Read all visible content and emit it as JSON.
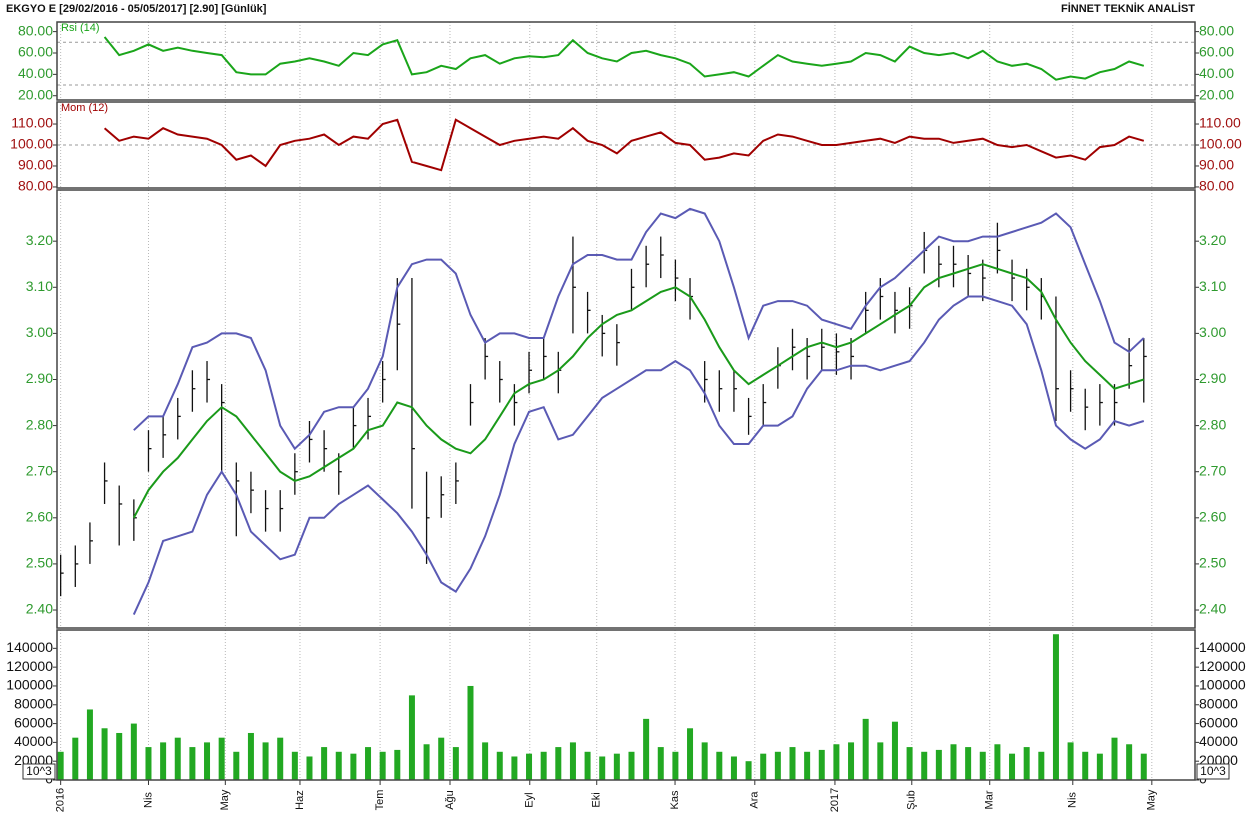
{
  "header": {
    "title": "EKGYO E  [29/02/2016 - 05/05/2017]  [2.90]  [Günlük]",
    "brand": "FİNNET TEKNİK ANALİST"
  },
  "chart_data": [
    {
      "type": "line",
      "x": [
        0,
        4,
        8,
        12,
        16,
        20,
        24,
        28,
        32,
        36,
        40,
        44,
        48,
        52,
        56,
        60,
        64,
        68,
        72,
        76,
        80,
        84,
        88,
        92,
        96,
        100,
        104,
        108,
        112,
        116,
        120,
        124,
        128,
        132,
        136,
        140,
        144,
        148,
        152,
        156,
        160,
        164,
        168,
        172,
        176,
        180,
        184,
        188,
        192,
        196,
        200,
        204,
        208,
        212,
        216,
        220,
        224,
        228,
        232,
        236,
        240,
        244,
        248,
        252,
        256,
        260,
        264,
        268,
        272,
        276,
        280,
        284,
        288,
        292,
        296
      ],
      "xlim": [
        -1,
        310
      ],
      "ylim": [
        16,
        89
      ],
      "yticks": [
        {
          "value": 20,
          "label": "20.00"
        },
        {
          "value": 40,
          "label": "40.00"
        },
        {
          "value": 60,
          "label": "60.00"
        },
        {
          "value": 80,
          "label": "80.00"
        }
      ],
      "levels": [
        30,
        70
      ],
      "tick_color": "#2e9a2e",
      "series": [
        {
          "name": "Rsi (14)",
          "color": "#1aa51a",
          "values": [
            null,
            null,
            null,
            75,
            58,
            62,
            68,
            62,
            65,
            62,
            60,
            58,
            42,
            40,
            40,
            50,
            52,
            55,
            52,
            48,
            60,
            58,
            68,
            72,
            40,
            42,
            48,
            45,
            55,
            58,
            50,
            55,
            57,
            56,
            58,
            72,
            60,
            55,
            52,
            60,
            62,
            58,
            55,
            50,
            38,
            40,
            42,
            38,
            48,
            58,
            52,
            50,
            48,
            50,
            52,
            60,
            58,
            52,
            66,
            60,
            58,
            60,
            55,
            62,
            52,
            48,
            50,
            45,
            35,
            38,
            36,
            42,
            45,
            52,
            48
          ]
        }
      ]
    },
    {
      "type": "line",
      "x": [
        0,
        4,
        8,
        12,
        16,
        20,
        24,
        28,
        32,
        36,
        40,
        44,
        48,
        52,
        56,
        60,
        64,
        68,
        72,
        76,
        80,
        84,
        88,
        92,
        96,
        100,
        104,
        108,
        112,
        116,
        120,
        124,
        128,
        132,
        136,
        140,
        144,
        148,
        152,
        156,
        160,
        164,
        168,
        172,
        176,
        180,
        184,
        188,
        192,
        196,
        200,
        204,
        208,
        212,
        216,
        220,
        224,
        228,
        232,
        236,
        240,
        244,
        248,
        252,
        256,
        260,
        264,
        268,
        272,
        276,
        280,
        284,
        288,
        292,
        296
      ],
      "xlim": [
        -1,
        310
      ],
      "ylim": [
        79.5,
        120.5
      ],
      "yticks": [
        {
          "value": 80,
          "label": "80.00"
        },
        {
          "value": 90,
          "label": "90.00"
        },
        {
          "value": 100,
          "label": "100.00"
        },
        {
          "value": 110,
          "label": "110.00"
        }
      ],
      "levels": [
        100
      ],
      "tick_color": "#a01010",
      "series": [
        {
          "name": "Mom (12)",
          "color": "#a00000",
          "values": [
            null,
            null,
            null,
            108,
            102,
            104,
            103,
            108,
            105,
            104,
            103,
            100,
            93,
            95,
            90,
            100,
            102,
            103,
            105,
            100,
            104,
            103,
            110,
            112,
            92,
            90,
            88,
            112,
            108,
            104,
            100,
            102,
            103,
            104,
            103,
            108,
            102,
            100,
            96,
            102,
            104,
            106,
            101,
            100,
            93,
            94,
            96,
            95,
            102,
            105,
            104,
            102,
            100,
            100,
            101,
            102,
            103,
            101,
            104,
            103,
            103,
            101,
            102,
            103,
            100,
            99,
            100,
            97,
            94,
            95,
            93,
            99,
            100,
            104,
            102
          ]
        }
      ]
    },
    {
      "type": "ohlc",
      "x": [
        0,
        4,
        8,
        12,
        16,
        20,
        24,
        28,
        32,
        36,
        40,
        44,
        48,
        52,
        56,
        60,
        64,
        68,
        72,
        76,
        80,
        84,
        88,
        92,
        96,
        100,
        104,
        108,
        112,
        116,
        120,
        124,
        128,
        132,
        136,
        140,
        144,
        148,
        152,
        156,
        160,
        164,
        168,
        172,
        176,
        180,
        184,
        188,
        192,
        196,
        200,
        204,
        208,
        212,
        216,
        220,
        224,
        228,
        232,
        236,
        240,
        244,
        248,
        252,
        256,
        260,
        264,
        268,
        272,
        276,
        280,
        284,
        288,
        292,
        296
      ],
      "xlim": [
        -1,
        310
      ],
      "ylim": [
        2.361,
        3.311
      ],
      "yticks": [
        {
          "value": 2.4,
          "label": "2.40"
        },
        {
          "value": 2.5,
          "label": "2.50"
        },
        {
          "value": 2.6,
          "label": "2.60"
        },
        {
          "value": 2.7,
          "label": "2.70"
        },
        {
          "value": 2.8,
          "label": "2.80"
        },
        {
          "value": 2.9,
          "label": "2.90"
        },
        {
          "value": 3.0,
          "label": "3.00"
        },
        {
          "value": 3.1,
          "label": "3.10"
        },
        {
          "value": 3.2,
          "label": "3.20"
        }
      ],
      "tick_color": "#2e9a2e",
      "color": "#111111",
      "high": [
        2.52,
        2.54,
        2.59,
        2.72,
        2.67,
        2.64,
        2.79,
        2.82,
        2.86,
        2.92,
        2.94,
        2.89,
        2.72,
        2.7,
        2.66,
        2.66,
        2.74,
        2.81,
        2.79,
        2.74,
        2.84,
        2.86,
        2.94,
        3.12,
        3.12,
        2.7,
        2.69,
        2.72,
        2.89,
        2.99,
        2.94,
        2.89,
        2.96,
        2.99,
        2.96,
        3.21,
        3.09,
        3.04,
        3.02,
        3.14,
        3.19,
        3.21,
        3.16,
        3.12,
        2.94,
        2.92,
        2.92,
        2.86,
        2.89,
        2.97,
        3.01,
        2.99,
        3.01,
        3.0,
        2.99,
        3.09,
        3.12,
        3.09,
        3.1,
        3.22,
        3.19,
        3.19,
        3.17,
        3.16,
        3.24,
        3.16,
        3.14,
        3.12,
        3.08,
        2.92,
        2.88,
        2.89,
        2.89,
        2.99,
        2.99
      ],
      "low": [
        2.43,
        2.45,
        2.5,
        2.63,
        2.54,
        2.55,
        2.7,
        2.73,
        2.77,
        2.83,
        2.85,
        2.7,
        2.56,
        2.61,
        2.57,
        2.57,
        2.65,
        2.72,
        2.7,
        2.65,
        2.75,
        2.77,
        2.85,
        2.92,
        2.62,
        2.5,
        2.6,
        2.63,
        2.8,
        2.9,
        2.85,
        2.8,
        2.87,
        2.9,
        2.87,
        3.0,
        3.0,
        2.95,
        2.93,
        3.05,
        3.1,
        3.12,
        3.07,
        3.03,
        2.85,
        2.83,
        2.83,
        2.78,
        2.8,
        2.88,
        2.92,
        2.9,
        2.92,
        2.91,
        2.9,
        3.0,
        3.03,
        3.0,
        3.01,
        3.13,
        3.1,
        3.1,
        3.08,
        3.07,
        3.13,
        3.07,
        3.05,
        3.03,
        2.81,
        2.83,
        2.79,
        2.8,
        2.8,
        2.88,
        2.85
      ],
      "close": [
        2.48,
        2.5,
        2.55,
        2.68,
        2.63,
        2.6,
        2.75,
        2.78,
        2.82,
        2.88,
        2.9,
        2.85,
        2.68,
        2.66,
        2.62,
        2.62,
        2.7,
        2.77,
        2.75,
        2.7,
        2.8,
        2.82,
        2.9,
        3.02,
        2.75,
        2.6,
        2.65,
        2.68,
        2.85,
        2.95,
        2.9,
        2.85,
        2.92,
        2.95,
        2.92,
        3.1,
        3.05,
        3.0,
        2.98,
        3.1,
        3.15,
        3.17,
        3.12,
        3.08,
        2.9,
        2.88,
        2.88,
        2.82,
        2.85,
        2.93,
        2.97,
        2.95,
        2.97,
        2.96,
        2.95,
        3.05,
        3.08,
        3.05,
        3.06,
        3.18,
        3.15,
        3.15,
        3.13,
        3.12,
        3.18,
        3.12,
        3.1,
        3.08,
        2.88,
        2.88,
        2.84,
        2.85,
        2.85,
        2.93,
        2.95
      ],
      "series": [
        {
          "color": "#5a5ab4",
          "values": [
            null,
            null,
            null,
            null,
            null,
            2.79,
            2.82,
            2.82,
            2.89,
            2.97,
            2.98,
            3.0,
            3.0,
            2.99,
            2.92,
            2.8,
            2.75,
            2.78,
            2.83,
            2.84,
            2.84,
            2.88,
            2.95,
            3.1,
            3.15,
            3.16,
            3.16,
            3.13,
            3.04,
            2.98,
            3.0,
            3.0,
            2.99,
            2.99,
            3.08,
            3.15,
            3.17,
            3.17,
            3.16,
            3.16,
            3.22,
            3.26,
            3.25,
            3.27,
            3.26,
            3.2,
            3.1,
            2.99,
            3.06,
            3.07,
            3.07,
            3.06,
            3.03,
            3.02,
            3.01,
            3.06,
            3.1,
            3.12,
            3.15,
            3.18,
            3.21,
            3.2,
            3.2,
            3.21,
            3.21,
            3.22,
            3.23,
            3.24,
            3.26,
            3.23,
            3.15,
            3.07,
            2.98,
            2.96,
            2.99
          ]
        },
        {
          "color": "#1a9a1a",
          "values": [
            null,
            null,
            null,
            null,
            null,
            2.6,
            2.66,
            2.7,
            2.73,
            2.77,
            2.81,
            2.84,
            2.82,
            2.78,
            2.74,
            2.7,
            2.68,
            2.69,
            2.71,
            2.73,
            2.75,
            2.79,
            2.8,
            2.85,
            2.84,
            2.8,
            2.77,
            2.75,
            2.74,
            2.77,
            2.82,
            2.87,
            2.89,
            2.9,
            2.92,
            2.95,
            2.99,
            3.02,
            3.04,
            3.05,
            3.07,
            3.09,
            3.1,
            3.08,
            3.03,
            2.97,
            2.92,
            2.89,
            2.91,
            2.93,
            2.95,
            2.97,
            2.98,
            2.97,
            2.98,
            3.0,
            3.02,
            3.04,
            3.06,
            3.1,
            3.12,
            3.13,
            3.14,
            3.15,
            3.14,
            3.13,
            3.12,
            3.09,
            3.03,
            2.98,
            2.94,
            2.91,
            2.88,
            2.89,
            2.9
          ]
        },
        {
          "color": "#5a5ab4",
          "values": [
            null,
            null,
            null,
            null,
            null,
            2.39,
            2.46,
            2.55,
            2.56,
            2.57,
            2.65,
            2.7,
            2.65,
            2.57,
            2.54,
            2.51,
            2.52,
            2.6,
            2.6,
            2.63,
            2.65,
            2.67,
            2.64,
            2.61,
            2.57,
            2.52,
            2.46,
            2.44,
            2.49,
            2.56,
            2.65,
            2.76,
            2.83,
            2.84,
            2.77,
            2.78,
            2.82,
            2.86,
            2.88,
            2.9,
            2.92,
            2.92,
            2.94,
            2.92,
            2.87,
            2.8,
            2.76,
            2.76,
            2.8,
            2.8,
            2.82,
            2.88,
            2.92,
            2.92,
            2.93,
            2.93,
            2.92,
            2.93,
            2.94,
            2.98,
            3.03,
            3.06,
            3.08,
            3.08,
            3.07,
            3.06,
            3.02,
            2.92,
            2.8,
            2.77,
            2.75,
            2.77,
            2.81,
            2.8,
            2.81
          ]
        }
      ]
    },
    {
      "type": "bar",
      "x": [
        0,
        4,
        8,
        12,
        16,
        20,
        24,
        28,
        32,
        36,
        40,
        44,
        48,
        52,
        56,
        60,
        64,
        68,
        72,
        76,
        80,
        84,
        88,
        92,
        96,
        100,
        104,
        108,
        112,
        116,
        120,
        124,
        128,
        132,
        136,
        140,
        144,
        148,
        152,
        156,
        160,
        164,
        168,
        172,
        176,
        180,
        184,
        188,
        192,
        196,
        200,
        204,
        208,
        212,
        216,
        220,
        224,
        228,
        232,
        236,
        240,
        244,
        248,
        252,
        256,
        260,
        264,
        268,
        272,
        276,
        280,
        284,
        288,
        292,
        296
      ],
      "xlim": [
        -1,
        310
      ],
      "ylim": [
        0,
        159500
      ],
      "yticks": [
        0,
        20000,
        40000,
        60000,
        80000,
        100000,
        120000,
        140000
      ],
      "tick_color": "#111111",
      "color": "#22a822",
      "unit_label": "10^3",
      "values": [
        30000,
        45000,
        75000,
        55000,
        50000,
        60000,
        35000,
        40000,
        45000,
        35000,
        40000,
        45000,
        30000,
        50000,
        40000,
        45000,
        30000,
        25000,
        35000,
        30000,
        28000,
        35000,
        30000,
        32000,
        90000,
        38000,
        45000,
        35000,
        100000,
        40000,
        30000,
        25000,
        28000,
        30000,
        35000,
        40000,
        30000,
        25000,
        28000,
        30000,
        65000,
        35000,
        30000,
        55000,
        40000,
        30000,
        25000,
        20000,
        28000,
        30000,
        35000,
        30000,
        32000,
        38000,
        40000,
        65000,
        40000,
        62000,
        35000,
        30000,
        32000,
        38000,
        35000,
        30000,
        38000,
        28000,
        35000,
        30000,
        155000,
        40000,
        30000,
        28000,
        45000,
        38000,
        28000
      ],
      "xticks": [
        {
          "value": 0,
          "label": "2016"
        },
        {
          "value": 24,
          "label": "Nis"
        },
        {
          "value": 45,
          "label": "May"
        },
        {
          "value": 65.4,
          "label": "Haz"
        },
        {
          "value": 87.3,
          "label": "Tem"
        },
        {
          "value": 106.4,
          "label": "Ağu"
        },
        {
          "value": 128.2,
          "label": "Eyl"
        },
        {
          "value": 146.5,
          "label": "Eki"
        },
        {
          "value": 167.9,
          "label": "Kas"
        },
        {
          "value": 189.7,
          "label": "Ara"
        },
        {
          "value": 211.6,
          "label": "2017"
        },
        {
          "value": 232.6,
          "label": "Şub"
        },
        {
          "value": 253.9,
          "label": "Mar"
        },
        {
          "value": 276.6,
          "label": "Nis"
        },
        {
          "value": 298.2,
          "label": "May"
        }
      ]
    }
  ]
}
